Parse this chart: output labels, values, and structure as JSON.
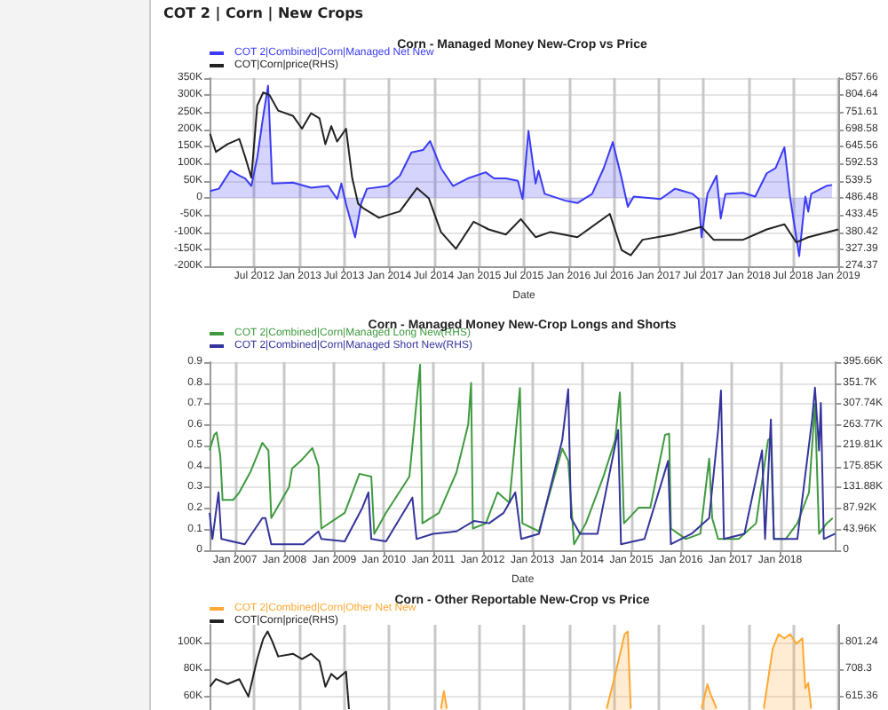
{
  "chart_data": [
    {
      "type": "line",
      "title": "Corn - Managed Money New-Crop vs Price",
      "xlabel": "Date",
      "annotations": [
        "COT 2 | Corn | New Crops"
      ],
      "legend": "top left",
      "grid": true,
      "xlim": [
        "2012-01-01",
        "2019-01-01"
      ],
      "xticks": [
        {
          "value": "2012-07",
          "label": "Jul 2012"
        },
        {
          "value": "2013-01",
          "label": "Jan 2013"
        },
        {
          "value": "2013-07",
          "label": "Jul 2013"
        },
        {
          "value": "2014-01",
          "label": "Jan 2014"
        },
        {
          "value": "2014-07",
          "label": "Jul 2014"
        },
        {
          "value": "2015-01",
          "label": "Jan 2015"
        },
        {
          "value": "2015-07",
          "label": "Jul 2015"
        },
        {
          "value": "2016-01",
          "label": "Jan 2016"
        },
        {
          "value": "2016-07",
          "label": "Jul 2016"
        },
        {
          "value": "2017-01",
          "label": "Jan 2017"
        },
        {
          "value": "2017-07",
          "label": "Jul 2017"
        },
        {
          "value": "2018-01",
          "label": "Jan 2018"
        },
        {
          "value": "2018-07",
          "label": "Jul 2018"
        },
        {
          "value": "2019-01",
          "label": "Jan 2019"
        }
      ],
      "ylim": [
        -200000,
        350000
      ],
      "yticks": [
        {
          "value": -200000,
          "label": "-200K"
        },
        {
          "value": -150000,
          "label": "-150K"
        },
        {
          "value": -100000,
          "label": "-100K"
        },
        {
          "value": -50000,
          "label": "-50K"
        },
        0,
        {
          "value": 50000,
          "label": "50K"
        },
        {
          "value": 100000,
          "label": "100K"
        },
        {
          "value": 150000,
          "label": "150K"
        },
        {
          "value": 200000,
          "label": "200K"
        },
        {
          "value": 250000,
          "label": "250K"
        },
        {
          "value": 300000,
          "label": "300K"
        },
        {
          "value": 350000,
          "label": "350K"
        }
      ],
      "y2lim": [
        274.37,
        857.66
      ],
      "y2ticks": [
        274.37,
        327.39,
        380.42,
        433.45,
        486.48,
        539.5,
        592.53,
        645.56,
        698.58,
        751.61,
        804.64,
        857.66
      ],
      "series": [
        {
          "name": "COT 2|Combined|Corn|Managed Net New",
          "type": "area",
          "color": "#3b3bf5",
          "x": [
            "2012-01-03",
            "2012-02-08",
            "2012-03-26",
            "2012-05-01",
            "2012-05-25",
            "2012-06-19",
            "2012-07-13",
            "2012-08-06",
            "2012-08-26",
            "2012-09-12",
            "2012-12-05",
            "2013-02-17",
            "2013-04-28",
            "2013-06-03",
            "2013-06-20",
            "2013-07-09",
            "2013-08-15",
            "2013-09-08",
            "2013-10-02",
            "2013-12-26",
            "2014-02-13",
            "2014-04-01",
            "2014-05-18",
            "2014-06-16",
            "2014-07-30",
            "2014-09-17",
            "2014-11-16",
            "2015-01-28",
            "2015-03-03",
            "2015-04-20",
            "2015-06-08",
            "2015-06-27",
            "2015-07-21",
            "2015-08-19",
            "2015-08-31",
            "2015-09-25",
            "2015-12-18",
            "2016-02-05",
            "2016-04-05",
            "2016-05-22",
            "2016-06-28",
            "2016-08-03",
            "2016-08-28",
            "2016-09-21",
            "2017-01-08",
            "2017-03-08",
            "2017-05-19",
            "2017-06-12",
            "2017-06-24",
            "2017-07-18",
            "2017-08-24",
            "2017-09-10",
            "2017-09-29",
            "2017-12-10",
            "2018-01-28",
            "2018-03-16",
            "2018-04-21",
            "2018-05-27",
            "2018-06-20",
            "2018-07-26",
            "2018-08-20",
            "2018-09-01",
            "2018-09-13",
            "2018-11-13",
            "2018-12-07"
          ],
          "values": [
            20000,
            27000,
            80000,
            65000,
            57000,
            35000,
            118000,
            238000,
            328000,
            42000,
            45000,
            30000,
            35000,
            -3000,
            42000,
            -18000,
            -115000,
            -18000,
            27000,
            35000,
            65000,
            133000,
            140000,
            166000,
            87000,
            35000,
            57000,
            75000,
            57000,
            57000,
            50000,
            -3000,
            196000,
            42000,
            80000,
            12000,
            -8000,
            -15000,
            12000,
            87000,
            163000,
            57000,
            -26000,
            4000,
            -3000,
            27000,
            12000,
            -3000,
            -115000,
            12000,
            65000,
            -60000,
            12000,
            15000,
            4000,
            72000,
            87000,
            148000,
            -3000,
            -170000,
            4000,
            -40000,
            12000,
            35000,
            38000
          ]
        },
        {
          "name": "COT|Corn|price(RHS)",
          "type": "line",
          "axis": "y2",
          "color": "#222222",
          "x": [
            "2012-01-03",
            "2012-01-27",
            "2012-03-14",
            "2012-05-01",
            "2012-05-25",
            "2012-06-19",
            "2012-07-13",
            "2012-08-06",
            "2012-09-01",
            "2012-10-06",
            "2012-12-05",
            "2013-01-11",
            "2013-02-17",
            "2013-03-23",
            "2013-04-16",
            "2013-05-10",
            "2013-06-03",
            "2013-07-09",
            "2013-08-03",
            "2013-08-27",
            "2013-09-20",
            "2013-11-20",
            "2014-02-13",
            "2014-04-24",
            "2014-06-11",
            "2014-07-30",
            "2014-09-29",
            "2014-12-10",
            "2015-02-09",
            "2015-04-20",
            "2015-06-20",
            "2015-08-19",
            "2015-10-19",
            "2016-02-05",
            "2016-06-16",
            "2016-08-03",
            "2016-09-09",
            "2016-10-27",
            "2017-02-26",
            "2017-06-24",
            "2017-08-12",
            "2017-12-10",
            "2018-03-16",
            "2018-05-27",
            "2018-07-14",
            "2018-09-01",
            "2019-01-01"
          ],
          "values": [
            685,
            629,
            653,
            669,
            613,
            549,
            773,
            813,
            805,
            757,
            741,
            701,
            749,
            733,
            653,
            709,
            661,
            701,
            549,
            469,
            453,
            425,
            445,
            517,
            485,
            381,
            329,
            413,
            389,
            373,
            421,
            365,
            381,
            365,
            437,
            325,
            309,
            357,
            373,
            397,
            357,
            357,
            389,
            405,
            349,
            365,
            389
          ]
        }
      ]
    },
    {
      "type": "line",
      "title": "Corn - Managed Money New-Crop Longs and Shorts",
      "xlabel": "Date",
      "legend": "top left",
      "grid": true,
      "xlim": [
        "2006-06-27",
        "2019-02-16"
      ],
      "xticks": [
        {
          "value": "2007-01",
          "label": "Jan 2007"
        },
        {
          "value": "2008-01",
          "label": "Jan 2008"
        },
        {
          "value": "2009-01",
          "label": "Jan 2009"
        },
        {
          "value": "2010-01",
          "label": "Jan 2010"
        },
        {
          "value": "2011-01",
          "label": "Jan 2011"
        },
        {
          "value": "2012-01",
          "label": "Jan 2012"
        },
        {
          "value": "2013-01",
          "label": "Jan 2013"
        },
        {
          "value": "2014-01",
          "label": "Jan 2014"
        },
        {
          "value": "2015-01",
          "label": "Jan 2015"
        },
        {
          "value": "2016-01",
          "label": "Jan 2016"
        },
        {
          "value": "2017-01",
          "label": "Jan 2017"
        },
        {
          "value": "2018-01",
          "label": "Jan 2018"
        }
      ],
      "ylim": [
        0,
        0.9
      ],
      "yticks": [
        0,
        0.1,
        0.2,
        0.3,
        0.4,
        0.5,
        0.6,
        0.7,
        0.8,
        0.9
      ],
      "y2lim": [
        0,
        395660
      ],
      "y2ticks": [
        0,
        {
          "value": 43960,
          "label": "43.96K"
        },
        {
          "value": 87920,
          "label": "87.92K"
        },
        {
          "value": 131880,
          "label": "131.88K"
        },
        {
          "value": 175850,
          "label": "175.85K"
        },
        {
          "value": 219810,
          "label": "219.81K"
        },
        {
          "value": 263770,
          "label": "263.77K"
        },
        {
          "value": 307740,
          "label": "307.74K"
        },
        {
          "value": 351700,
          "label": "351.7K"
        },
        {
          "value": 395660,
          "label": "395.66K"
        }
      ],
      "series": [
        {
          "name": "COT 2|Combined|Corn|Managed Long New(RHS)",
          "type": "line",
          "axis": "y2",
          "color": "#3f9a3f",
          "x": [
            "2006-06-27",
            "2006-08-01",
            "2006-08-18",
            "2006-09-14",
            "2006-10-01",
            "2006-12-18",
            "2007-02-01",
            "2007-04-26",
            "2007-07-21",
            "2007-09-04",
            "2007-09-25",
            "2008-02-03",
            "2008-02-25",
            "2008-04-29",
            "2008-07-24",
            "2008-09-07",
            "2008-09-28",
            "2009-03-19",
            "2009-07-06",
            "2009-10-01",
            "2009-10-23",
            "2010-01-18",
            "2010-07-09",
            "2010-09-26",
            "2010-10-13",
            "2011-02-12",
            "2011-06-21",
            "2011-09-16",
            "2011-10-07",
            "2011-10-20",
            "2012-01-24",
            "2012-04-19",
            "2012-07-15",
            "2012-10-01",
            "2012-10-19",
            "2013-02-18",
            "2013-08-09",
            "2013-09-22",
            "2013-11-04",
            "2014-01-30",
            "2014-06-08",
            "2014-09-03",
            "2014-10-08",
            "2014-11-07",
            "2015-02-24",
            "2015-05-20",
            "2015-09-06",
            "2015-10-06",
            "2015-10-19",
            "2016-02-06",
            "2016-05-23",
            "2016-07-27",
            "2016-08-18",
            "2016-10-01",
            "2017-03-01",
            "2017-07-08",
            "2017-10-04",
            "2017-10-25",
            "2017-11-16",
            "2018-02-11",
            "2018-05-08",
            "2018-08-02",
            "2018-09-15",
            "2018-10-15",
            "2018-12-11",
            "2019-01-24"
          ],
          "values": [
            210000,
            243000,
            248000,
            199000,
            106000,
            106000,
            122000,
            166000,
            226000,
            210000,
            68000,
            133000,
            172000,
            188000,
            215000,
            177000,
            46000,
            79000,
            161000,
            155000,
            35000,
            79000,
            155000,
            390000,
            57000,
            79000,
            164000,
            265000,
            352000,
            46000,
            57000,
            122000,
            100000,
            341000,
            57000,
            40000,
            214000,
            188000,
            13000,
            57000,
            155000,
            232000,
            332000,
            57000,
            90000,
            90000,
            243000,
            245000,
            46000,
            24000,
            35000,
            193000,
            68000,
            24000,
            24000,
            57000,
            232000,
            237000,
            24000,
            24000,
            57000,
            122000,
            308000,
            35000,
            57000,
            68000
          ]
        },
        {
          "name": "COT 2|Combined|Corn|Managed Short New(RHS)",
          "type": "line",
          "axis": "y2",
          "color": "#34349c",
          "x": [
            "2006-06-27",
            "2006-07-18",
            "2006-09-01",
            "2006-09-22",
            "2007-03-13",
            "2007-07-21",
            "2007-08-13",
            "2007-09-25",
            "2008-05-20",
            "2008-09-07",
            "2008-09-28",
            "2009-03-19",
            "2009-07-28",
            "2009-09-10",
            "2009-10-01",
            "2010-01-18",
            "2010-07-31",
            "2010-08-31",
            "2010-12-30",
            "2011-06-21",
            "2011-10-29",
            "2012-02-16",
            "2012-06-03",
            "2012-08-28",
            "2012-10-11",
            "2013-02-18",
            "2013-08-09",
            "2013-09-22",
            "2013-10-13",
            "2013-12-18",
            "2014-04-26",
            "2014-09-25",
            "2014-10-16",
            "2015-04-07",
            "2015-09-28",
            "2015-10-19",
            "2016-03-19",
            "2016-07-27",
            "2016-10-01",
            "2016-10-22",
            "2016-11-13",
            "2017-04-13",
            "2017-08-21",
            "2017-09-12",
            "2017-10-25",
            "2017-11-16",
            "2018-05-08",
            "2018-08-25",
            "2018-09-15",
            "2018-10-15",
            "2018-10-28",
            "2018-11-19",
            "2019-02-10"
          ],
          "values": [
            79000,
            24000,
            122000,
            24000,
            13000,
            68000,
            68000,
            13000,
            13000,
            40000,
            24000,
            19000,
            90000,
            122000,
            24000,
            19000,
            111000,
            24000,
            35000,
            40000,
            62000,
            57000,
            79000,
            122000,
            24000,
            35000,
            232000,
            339000,
            68000,
            35000,
            35000,
            253000,
            13000,
            24000,
            188000,
            13000,
            35000,
            68000,
            253000,
            336000,
            24000,
            35000,
            210000,
            24000,
            275000,
            24000,
            24000,
            275000,
            342000,
            210000,
            310000,
            24000,
            35000
          ]
        }
      ]
    },
    {
      "type": "line",
      "title": "Corn - Other Reportable New-Crop vs Price",
      "legend": "top left",
      "grid": true,
      "tick_labels": "y",
      "xlim": [
        "2012-01-01",
        "2019-01-01"
      ],
      "xticks": [
        {
          "value": "2012-07",
          "label": null
        },
        {
          "value": "2013-01",
          "label": null
        },
        {
          "value": "2013-07",
          "label": null
        },
        {
          "value": "2014-01",
          "label": null
        },
        {
          "value": "2014-07",
          "label": null
        },
        {
          "value": "2015-01",
          "label": null
        },
        {
          "value": "2015-07",
          "label": null
        },
        {
          "value": "2016-01",
          "label": null
        },
        {
          "value": "2016-07",
          "label": null
        },
        {
          "value": "2017-01",
          "label": null
        },
        {
          "value": "2017-07",
          "label": null
        },
        {
          "value": "2018-01",
          "label": null
        },
        {
          "value": "2018-07",
          "label": null
        },
        {
          "value": "2019-01",
          "label": null
        }
      ],
      "ylim": [
        50000,
        113000
      ],
      "yticks": [
        {
          "value": 60000,
          "label": "60K"
        },
        {
          "value": 80000,
          "label": "80K"
        },
        {
          "value": 100000,
          "label": "100K"
        }
      ],
      "y2lim": [
        568.89,
        861.65
      ],
      "y2ticks": [
        615.36,
        708.3,
        801.24
      ],
      "series": [
        {
          "name": "COT 2|Combined|Corn|Other Net New",
          "type": "area",
          "color": "#ffa833",
          "x": [
            "2014-07-30",
            "2014-08-11",
            "2014-08-23",
            "2015-07-01",
            "2016-06-03",
            "2016-07-09",
            "2016-08-15",
            "2016-08-28",
            "2016-09-09",
            "2017-01-01",
            "2017-06-24",
            "2017-07-18",
            "2017-07-30",
            "2017-08-24",
            "2017-12-01",
            "2018-03-04",
            "2018-04-09",
            "2018-05-03",
            "2018-05-27",
            "2018-06-20",
            "2018-07-14",
            "2018-08-08",
            "2018-08-20",
            "2018-09-01",
            "2018-09-13"
          ],
          "values": [
            51000,
            64000,
            51000,
            null,
            51000,
            77000,
            106000,
            108000,
            51000,
            null,
            51000,
            69000,
            62000,
            51000,
            null,
            51000,
            95000,
            106000,
            103000,
            106000,
            99000,
            103000,
            66000,
            70000,
            51000
          ]
        },
        {
          "name": "COT|Corn|price(RHS)",
          "type": "line",
          "axis": "y2",
          "color": "#222222",
          "x": [
            "2012-01-03",
            "2012-01-27",
            "2012-03-14",
            "2012-05-01",
            "2012-06-07",
            "2012-07-13",
            "2012-08-06",
            "2012-08-24",
            "2012-09-12",
            "2012-10-06",
            "2012-12-05",
            "2013-01-11",
            "2013-02-17",
            "2013-03-23",
            "2013-04-16",
            "2013-05-10",
            "2013-06-03",
            "2013-07-09",
            "2013-07-21"
          ],
          "values": [
            649,
            675,
            658,
            675,
            615,
            744,
            813,
            839,
            805,
            753,
            762,
            744,
            762,
            736,
            649,
            693,
            675,
            701,
            572
          ]
        }
      ]
    }
  ]
}
